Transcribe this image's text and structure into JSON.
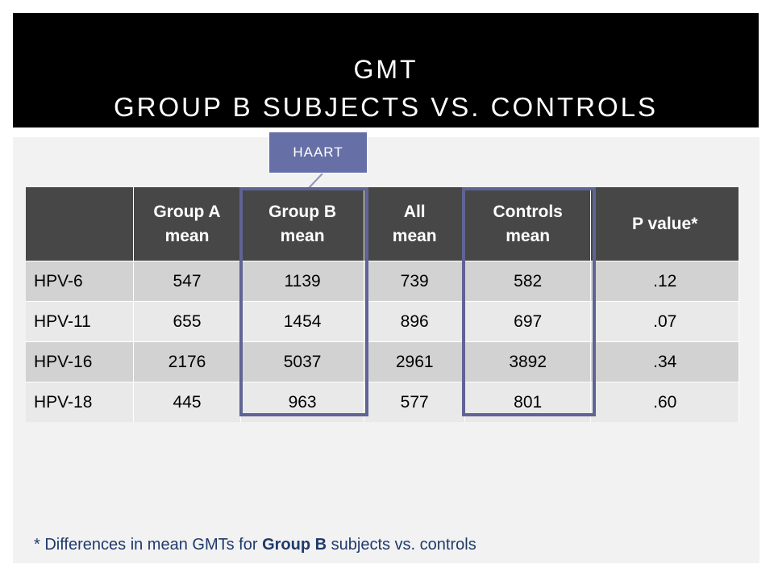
{
  "slide": {
    "title_line1": "GMT",
    "title_line2": "Group B Subjects vs. Controls",
    "callout": "HAART",
    "highlight_color": "#5e6494",
    "callout_color": "#6670a6"
  },
  "table": {
    "headers": [
      "",
      "Group A\nmean",
      "Group B\nmean",
      "All\nmean",
      "Controls\nmean",
      "P value*"
    ],
    "rows": [
      [
        "HPV-6",
        "547",
        "1139",
        "739",
        "582",
        ".12"
      ],
      [
        "HPV-11",
        "655",
        "1454",
        "896",
        "697",
        ".07"
      ],
      [
        "HPV-16",
        "2176",
        "5037",
        "2961",
        "3892",
        ".34"
      ],
      [
        "HPV-18",
        "445",
        "963",
        "577",
        "801",
        ".60"
      ]
    ],
    "header_color": "#474747",
    "row_colors": [
      "#d2d2d2",
      "#e9e9e9"
    ]
  },
  "footnote": {
    "prefix": "* Differences in mean GMTs for ",
    "bold": "Group B",
    "suffix": " subjects vs. controls"
  }
}
